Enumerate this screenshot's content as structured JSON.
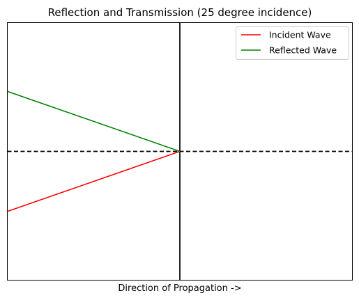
{
  "chart_data": {
    "type": "line",
    "title": "Reflection and Transmission (25 degree incidence)",
    "xlabel": "Direction of Propagation ->",
    "ylabel": "",
    "xlim": [
      -1,
      1
    ],
    "ylim": [
      -1,
      1
    ],
    "grid": false,
    "legend_position": "upper right",
    "x_ticks_visible": false,
    "y_ticks_visible": false,
    "series": [
      {
        "name": "Incident Wave",
        "color": "#ff0000",
        "x": [
          -1,
          0
        ],
        "y": [
          -0.4663,
          0
        ]
      },
      {
        "name": "Reflected Wave",
        "color": "#008000",
        "x": [
          -1,
          0
        ],
        "y": [
          0.4663,
          0
        ]
      }
    ],
    "reference_lines": [
      {
        "kind": "interface",
        "orientation": "vertical",
        "at": 0,
        "style": "solid",
        "color": "#000000"
      },
      {
        "kind": "normal",
        "orientation": "horizontal",
        "at": 0,
        "style": "dashed",
        "color": "#000000"
      }
    ]
  }
}
